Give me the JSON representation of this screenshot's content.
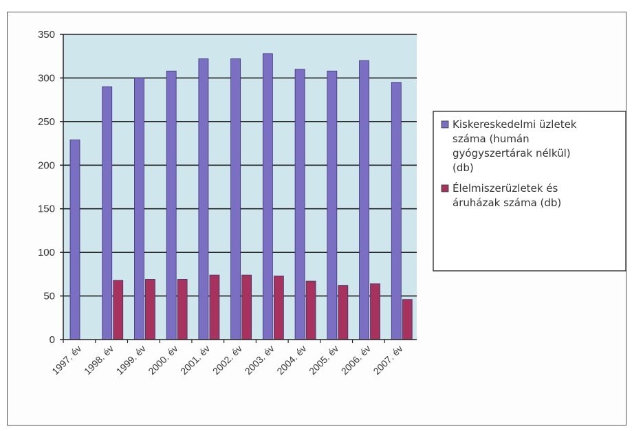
{
  "chart_data": {
    "type": "bar",
    "categories": [
      "1997. év",
      "1998. év",
      "1999. év",
      "2000. év",
      "2001. év",
      "2002. év",
      "2003. év",
      "2004. év",
      "2005. év",
      "2006. év",
      "2007. év"
    ],
    "series": [
      {
        "name": "Kiskereskedelmi üzletek száma (humán gyógyszertárak nélkül) (db)",
        "name_lines": [
          "Kiskereskedelmi üzletek",
          "száma (humán",
          "gyógyszertárak nélkül)",
          "(db)"
        ],
        "color": "#7b6fc4",
        "values": [
          229,
          290,
          300,
          308,
          322,
          322,
          328,
          310,
          308,
          320,
          295
        ]
      },
      {
        "name": "Élelmiszerüzletek és áruházak száma (db)",
        "name_lines": [
          "Élelmiszerüzletek és",
          "áruházak száma (db)"
        ],
        "color": "#a8325e",
        "values": [
          0,
          68,
          69,
          69,
          74,
          74,
          73,
          67,
          62,
          64,
          46
        ]
      }
    ],
    "ylim": [
      0,
      350
    ],
    "yticks": [
      0,
      50,
      100,
      150,
      200,
      250,
      300,
      350
    ],
    "plot_background": "#cfe6ec",
    "grid": true,
    "legend_position": "right"
  }
}
